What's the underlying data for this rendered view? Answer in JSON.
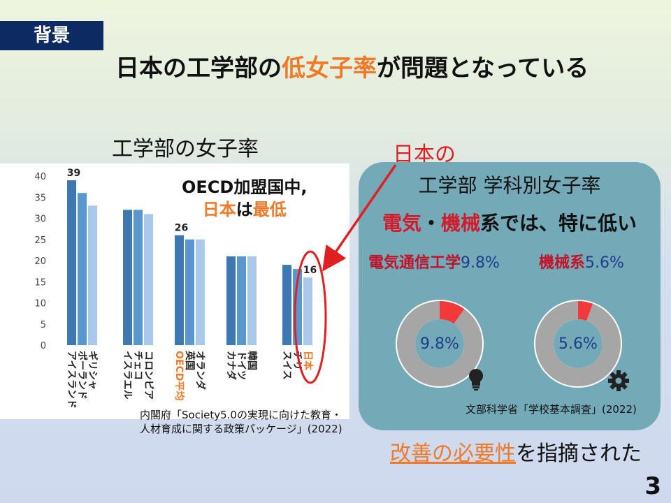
{
  "tag": "背景",
  "title": {
    "pre": "日本の工学部の",
    "highlight": "低女子率",
    "post": "が問題となっている"
  },
  "subtitle": "工学部の女子率",
  "callout": {
    "line1": "OECD加盟国中,",
    "part_a": "日本",
    "part_b": "は",
    "part_c": "最低"
  },
  "japan_label": "日本の",
  "card": {
    "title": "工学部 学科別女子率",
    "sub_red1": "電気",
    "sub_mid": "・",
    "sub_red2": "機械",
    "sub_rest": "系では、特に低い",
    "left_label": "電気通信工学",
    "left_value": "9.8%",
    "right_label": "機械系",
    "right_value": "5.6%",
    "left_center": "9.8%",
    "right_center": "5.6%",
    "source": "文部科学省「学校基本調査」(2022)"
  },
  "left_source": {
    "line1": "内閣府「Society5.0の実現に向けた教育・",
    "line2": "人材育成に関する政策パッケージ」(2022)"
  },
  "bottom_note": {
    "underlined": "改善の必要性",
    "rest": "を指摘された"
  },
  "page_number": "3",
  "icons": [
    "lightbulb-icon",
    "gear-icon"
  ],
  "colors": {
    "accent_orange": "#ee7a2a",
    "red": "#e02020",
    "navy": "#0d2a63",
    "card": "#74aab8"
  },
  "chart_data": {
    "type": "bar",
    "ylim": [
      0,
      40
    ],
    "yticks": [
      0,
      5,
      10,
      15,
      20,
      25,
      30,
      35,
      40
    ],
    "categories": [
      "アイスランド",
      "ポーランド",
      "ギリシャ",
      "イスラエル",
      "チェコ",
      "コロンビア",
      "OECD平均",
      "英国",
      "オランダ",
      "カナダ",
      "ドイツ",
      "韓国",
      "スイス",
      "チリ",
      "日本"
    ],
    "values": [
      39,
      36,
      33,
      32,
      32,
      31,
      26,
      25,
      25,
      21,
      21,
      21,
      19,
      18,
      16
    ],
    "labeled": {
      "アイスランド": "39",
      "OECD平均": "26",
      "日本": "16"
    },
    "highlighted": [
      "OECD平均",
      "日本"
    ]
  },
  "donuts": [
    {
      "name": "電気通信工学",
      "value": 9.8
    },
    {
      "name": "機械系",
      "value": 5.6
    }
  ]
}
